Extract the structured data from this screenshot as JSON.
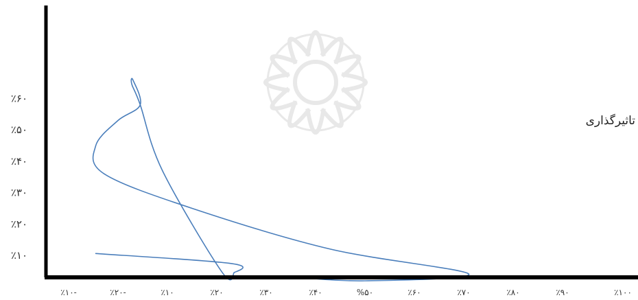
{
  "chart_data": {
    "type": "line",
    "title": "",
    "xlabel": "",
    "ylabel": "",
    "series_label": "تاثیرگذاری",
    "x_tick_labels": [
      "٪۱۰-",
      "٪۲۰-",
      "٪۱۰",
      "٪۲۰",
      "٪۳۰",
      "٪۴۰",
      "%۵۰",
      "٪۶۰",
      "٪۷۰",
      "٪۸۰",
      "٪۹۰",
      "٪۱۰۰"
    ],
    "y_tick_labels": [
      "٪۶۰",
      "٪۵۰",
      "٪۴۰",
      "٪۳۰",
      "٪۲۰",
      "٪۱۰"
    ],
    "y_tick_values": [
      60,
      50,
      40,
      30,
      20,
      10
    ],
    "ylim": [
      3,
      75
    ],
    "grid": false,
    "line_color": "#4a7ebb",
    "axis_color": "#000000",
    "curve_points": [
      {
        "x": 0.55,
        "y": 10.6
      },
      {
        "x": 3.3,
        "y": 7.4
      },
      {
        "x": 3.35,
        "y": 4.5
      },
      {
        "x": 3.1,
        "y": 4.8
      },
      {
        "x": 1.9,
        "y": 37.0
      },
      {
        "x": 1.45,
        "y": 58.0
      },
      {
        "x": 1.28,
        "y": 64.5
      },
      {
        "x": 1.3,
        "y": 66.0
      },
      {
        "x": 1.45,
        "y": 58.0
      },
      {
        "x": 1.0,
        "y": 53.0
      },
      {
        "x": 0.55,
        "y": 45.0
      },
      {
        "x": 0.72,
        "y": 36.0
      },
      {
        "x": 2.5,
        "y": 25.0
      },
      {
        "x": 5.3,
        "y": 12.0
      },
      {
        "x": 8.1,
        "y": 4.1
      },
      {
        "x": 6.0,
        "y": 1.9
      },
      {
        "x": 4.6,
        "y": 3.0
      }
    ]
  }
}
